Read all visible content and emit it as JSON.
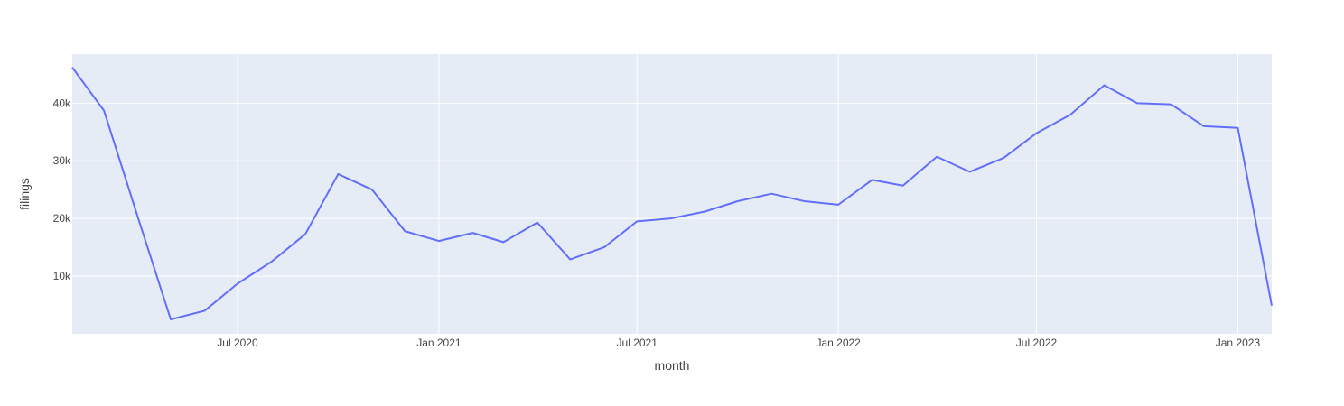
{
  "chart_data": {
    "type": "line",
    "title": "",
    "xlabel": "month",
    "ylabel": "filings",
    "x": [
      "2020-03-01",
      "2020-04-01",
      "2020-05-01",
      "2020-06-01",
      "2020-07-01",
      "2020-08-01",
      "2020-09-01",
      "2020-10-01",
      "2020-11-01",
      "2020-12-01",
      "2021-01-01",
      "2021-02-01",
      "2021-03-01",
      "2021-04-01",
      "2021-05-01",
      "2021-06-01",
      "2021-07-01",
      "2021-08-01",
      "2021-09-01",
      "2021-10-01",
      "2021-11-01",
      "2021-12-01",
      "2022-01-01",
      "2022-02-01",
      "2022-03-01",
      "2022-04-01",
      "2022-05-01",
      "2022-06-01",
      "2022-07-01",
      "2022-08-01",
      "2022-09-01",
      "2022-10-01",
      "2022-11-01",
      "2022-12-01",
      "2023-01-01",
      "2023-02-01"
    ],
    "series": [
      {
        "values": [
          38700,
          20200,
          2500,
          4000,
          8700,
          12500,
          17300,
          27700,
          25000,
          17800,
          16100,
          17500,
          15900,
          19300,
          12900,
          15000,
          19500,
          20000,
          21200,
          23000,
          24300,
          23000,
          22400,
          26700,
          25700,
          30700,
          28100,
          30500,
          34800,
          38000,
          43100,
          40000,
          39800,
          36000,
          35700,
          4900
        ],
        "color": "#636efa"
      }
    ],
    "first_point": {
      "x": "2020-02-01",
      "y": 46200
    },
    "xlim": [
      "2020-02-01",
      "2023-02-01"
    ],
    "ylim": [
      0,
      48500
    ],
    "x_ticks": [
      {
        "value": "2020-07-01",
        "label": "Jul 2020"
      },
      {
        "value": "2021-01-01",
        "label": "Jan 2021"
      },
      {
        "value": "2021-07-01",
        "label": "Jul 2021"
      },
      {
        "value": "2022-01-01",
        "label": "Jan 2022"
      },
      {
        "value": "2022-07-01",
        "label": "Jul 2022"
      },
      {
        "value": "2023-01-01",
        "label": "Jan 2023"
      }
    ],
    "y_ticks": [
      {
        "value": 10000,
        "label": "10k"
      },
      {
        "value": 20000,
        "label": "20k"
      },
      {
        "value": 30000,
        "label": "30k"
      },
      {
        "value": 40000,
        "label": "40k"
      }
    ],
    "grid": true,
    "plot_bgcolor": "#e5ecf6",
    "gridcolor": "#ffffff",
    "legend": "none"
  }
}
